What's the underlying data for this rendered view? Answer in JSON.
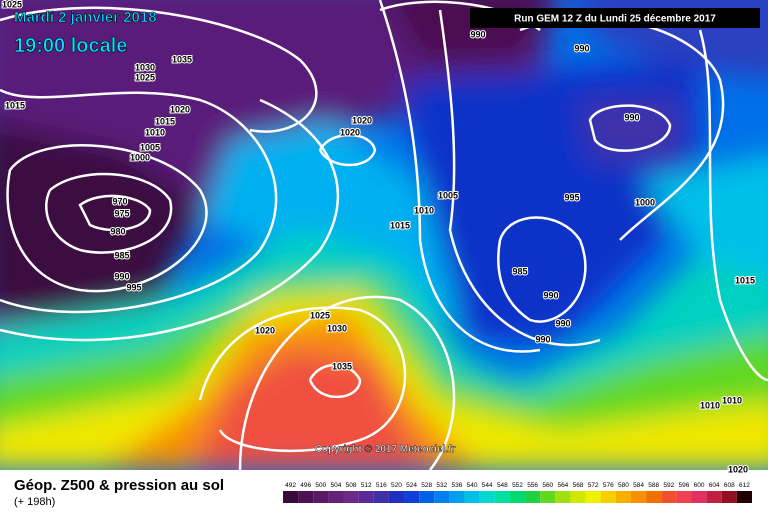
{
  "header": {
    "title": "Mardi 2 janvier 2018",
    "subtitle": "19:00 locale",
    "run": "Run GEM 12 Z du Lundi 25 décembre 2017"
  },
  "copyright": "Copyright © 2017 Meteociel.fr",
  "footer": {
    "title": "Géop. Z500 & pression au sol",
    "lead": "(+ 198h)"
  },
  "colorbar": {
    "values": [
      492,
      496,
      500,
      504,
      508,
      512,
      516,
      520,
      524,
      528,
      532,
      536,
      540,
      544,
      548,
      552,
      556,
      560,
      564,
      568,
      572,
      576,
      580,
      584,
      588,
      592,
      596,
      600,
      604,
      608,
      612
    ],
    "colors": [
      "#3a0a3a",
      "#4b1150",
      "#5a1a66",
      "#66207a",
      "#6a2a8a",
      "#5a2a9a",
      "#4030a8",
      "#2030c0",
      "#1040d8",
      "#0060e8",
      "#0080f0",
      "#00a0f0",
      "#00c0e8",
      "#00d8d0",
      "#00e0a0",
      "#00d870",
      "#20d040",
      "#60d820",
      "#a0e010",
      "#d0e800",
      "#f0f000",
      "#f8d000",
      "#f8b000",
      "#f89000",
      "#f07000",
      "#f05030",
      "#f04050",
      "#e03060",
      "#c02040",
      "#901020",
      "#200000"
    ]
  },
  "isobar_labels": [
    "1025",
    "1035",
    "1030",
    "1025",
    "1015",
    "1020",
    "1015",
    "1010",
    "1005",
    "1000",
    "1020",
    "1020",
    "970",
    "975",
    "980",
    "985",
    "990",
    "995",
    "1020",
    "1025",
    "1030",
    "1035",
    "990",
    "990",
    "990",
    "1005",
    "1010",
    "1015",
    "995",
    "1000",
    "985",
    "990",
    "990",
    "990",
    "1015",
    "1010",
    "1010",
    "1020"
  ]
}
